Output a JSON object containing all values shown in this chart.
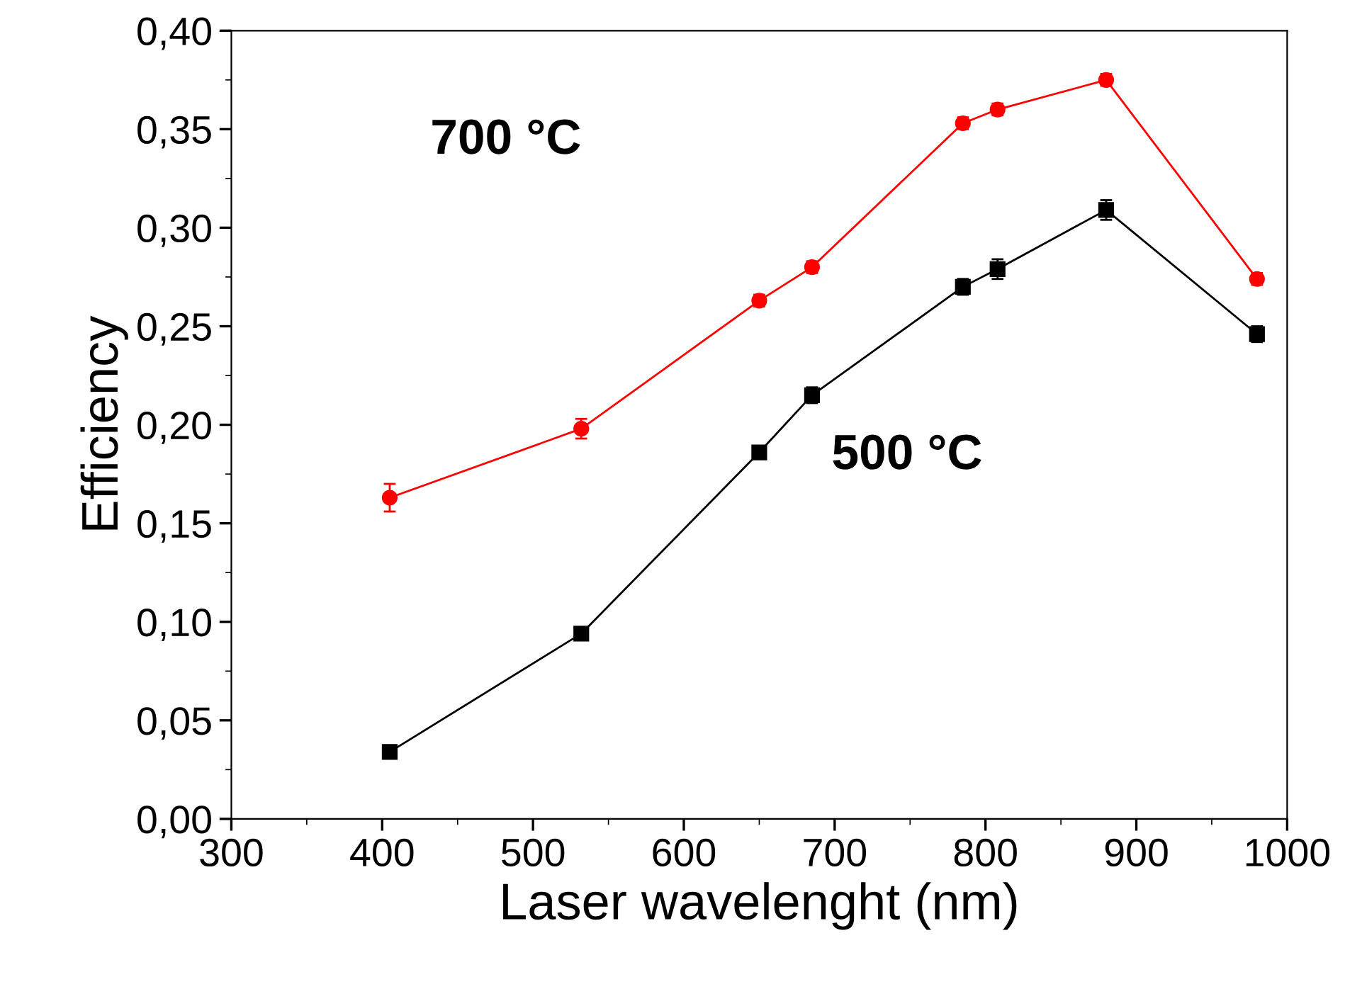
{
  "chart_data": {
    "type": "line",
    "xlabel": "Laser wavelenght (nm)",
    "ylabel": "Efficiency",
    "xlim": [
      300,
      1000
    ],
    "xticks": [
      300,
      400,
      500,
      600,
      700,
      800,
      900,
      1000
    ],
    "ylim": [
      0,
      0.4
    ],
    "yticks": [
      {
        "value": 0,
        "label": "0,00"
      },
      {
        "value": 0.05,
        "label": "0,05"
      },
      {
        "value": 0.1,
        "label": "0,10"
      },
      {
        "value": 0.15,
        "label": "0,15"
      },
      {
        "value": 0.2,
        "label": "0,20"
      },
      {
        "value": 0.25,
        "label": "0,25"
      },
      {
        "value": 0.3,
        "label": "0,30"
      },
      {
        "value": 0.35,
        "label": "0,35"
      },
      {
        "value": 0.4,
        "label": "0,40"
      }
    ],
    "x": [
      405,
      532,
      650,
      685,
      785,
      808,
      880,
      980
    ],
    "series": [
      {
        "color": "#ff0000",
        "marker": "circle",
        "values": [
          0.163,
          0.198,
          0.263,
          0.28,
          0.353,
          0.36,
          0.375,
          0.274
        ],
        "errors": [
          0.007,
          0.005,
          0.003,
          0.003,
          0.003,
          0.003,
          0.003,
          0.003
        ]
      },
      {
        "color": "#000000",
        "marker": "square",
        "values": [
          0.034,
          0.094,
          0.186,
          0.215,
          0.27,
          0.279,
          0.309,
          0.246
        ],
        "errors": [
          0.003,
          0.003,
          0.003,
          0.004,
          0.004,
          0.005,
          0.005,
          0.004
        ]
      }
    ],
    "annotations": [
      "700 °C",
      "500 °C"
    ],
    "grid": false,
    "legend": false
  }
}
